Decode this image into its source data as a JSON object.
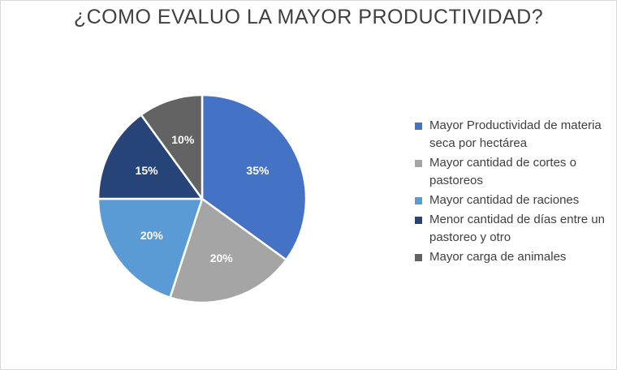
{
  "chart_data": {
    "type": "pie",
    "title": "¿COMO EVALUO LA MAYOR PRODUCTIVIDAD?",
    "categories": [
      "Mayor Productividad de materia seca por hectárea",
      "Mayor cantidad de cortes o pastoreos",
      "Mayor cantidad de raciones",
      "Menor cantidad de días entre un pastoreo y otro",
      "Mayor carga de animales"
    ],
    "values": [
      35,
      20,
      20,
      15,
      10
    ],
    "labels": [
      "35%",
      "20%",
      "20%",
      "15%",
      "10%"
    ],
    "colors": [
      "#4472c4",
      "#a5a5a5",
      "#5b9bd5",
      "#264478",
      "#636363"
    ],
    "legend_position": "right",
    "start_angle_deg": 0,
    "direction": "clockwise"
  }
}
